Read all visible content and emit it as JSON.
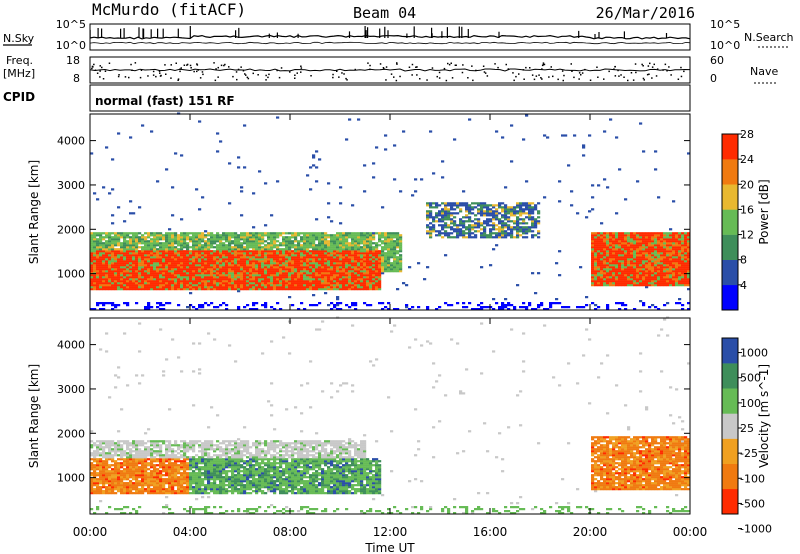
{
  "header": {
    "station": "McMurdo (fitACF)",
    "beam": "Beam 04",
    "date": "26/Mar/2016"
  },
  "noise_panel": {
    "left_label": "N.Sky",
    "left_ticks": [
      "10^5",
      "10^0"
    ],
    "right_label": "N.Search",
    "right_ticks": [
      "10^5",
      "10^0"
    ]
  },
  "freq_panel": {
    "left_label_1": "Freq.",
    "left_label_2": "[MHz]",
    "left_ticks": [
      "18",
      "8"
    ],
    "right_label": "Nave",
    "right_ticks": [
      "60",
      "0"
    ]
  },
  "cpid_panel": {
    "label": "CPID",
    "mode": "normal (fast) 151 RF"
  },
  "chart_data": [
    {
      "type": "heatmap",
      "title": "",
      "ylabel": "Slant Range [km]",
      "ylim": [
        180,
        4600
      ],
      "yticks": [
        "1000",
        "2000",
        "3000",
        "4000"
      ],
      "colorbar_label": "Power [dB]",
      "colorbar_ticks": [
        "4",
        "8",
        "12",
        "16",
        "20",
        "24",
        "28"
      ],
      "colors": [
        "#0000ff",
        "#2a4ea8",
        "#3e8e5a",
        "#66bb55",
        "#e8b830",
        "#f07a10",
        "#ff2b00"
      ],
      "regions": [
        {
          "t0": 0.0,
          "t1": 11.6,
          "r0": 600,
          "r1": 1500,
          "level": "strong"
        },
        {
          "t0": 0.0,
          "t1": 12.5,
          "r0": 1000,
          "r1": 1900,
          "level": "medium"
        },
        {
          "t0": 13.5,
          "t1": 18.0,
          "r0": 1800,
          "r1": 2600,
          "level": "weak"
        },
        {
          "t0": 20.0,
          "t1": 24.0,
          "r0": 700,
          "r1": 1900,
          "level": "strong"
        }
      ]
    },
    {
      "type": "heatmap",
      "title": "",
      "ylabel": "Slant Range [km]",
      "ylim": [
        180,
        4600
      ],
      "yticks": [
        "1000",
        "2000",
        "3000",
        "4000"
      ],
      "xlabel": "Time UT",
      "xticks": [
        "00:00",
        "04:00",
        "08:00",
        "12:00",
        "16:00",
        "20:00",
        "00:00"
      ],
      "colorbar_label": "Velocity [m s^-1]",
      "colorbar_ticks": [
        "1000",
        "500",
        "100",
        "25",
        "-25",
        "-100",
        "-500",
        "-1000"
      ],
      "colors": [
        "#2a4ea8",
        "#3e8e5a",
        "#66bb55",
        "#c8c8c8",
        "#f0a020",
        "#f07a10",
        "#ff2b00"
      ],
      "regions": [
        {
          "t0": 0.0,
          "t1": 4.0,
          "r0": 600,
          "r1": 1400,
          "level": "negative"
        },
        {
          "t0": 4.0,
          "t1": 11.6,
          "r0": 600,
          "r1": 1400,
          "level": "positive"
        },
        {
          "t0": 0.0,
          "t1": 11.0,
          "r0": 1300,
          "r1": 1800,
          "level": "near-zero"
        },
        {
          "t0": 20.0,
          "t1": 24.0,
          "r0": 700,
          "r1": 1900,
          "level": "negative"
        }
      ]
    }
  ]
}
